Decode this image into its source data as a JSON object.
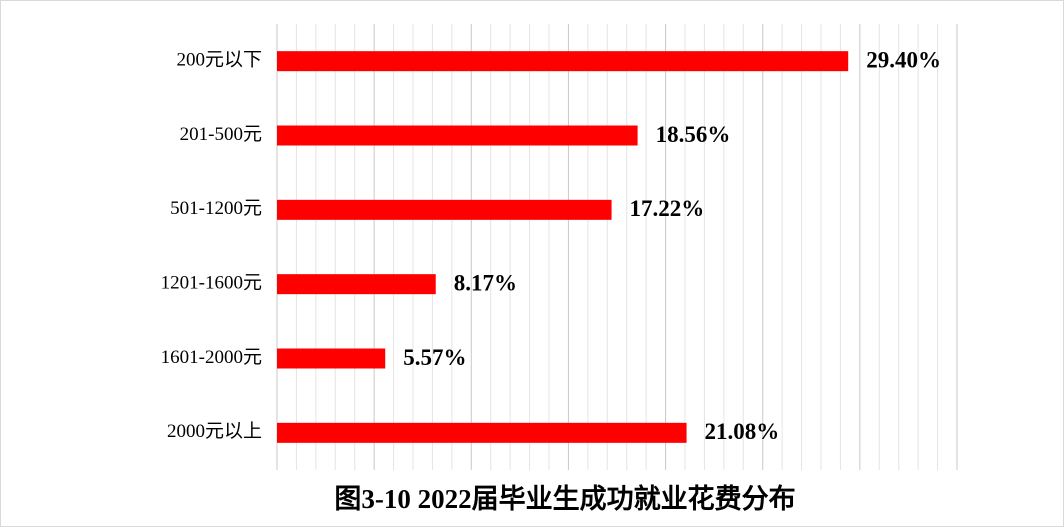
{
  "chart_data": {
    "type": "bar",
    "orientation": "horizontal",
    "title": "图3-10  2022届毕业生成功就业花费分布",
    "categories": [
      "200元以下",
      "201-500元",
      "501-1200元",
      "1201-1600元",
      "1601-2000元",
      "2000元以上"
    ],
    "values": [
      29.4,
      18.56,
      17.22,
      8.17,
      5.57,
      21.08
    ],
    "value_labels": [
      "29.40%",
      "18.56%",
      "17.22%",
      "8.17%",
      "5.57%",
      "21.08%"
    ],
    "color": "#ff0000",
    "xlim": [
      0,
      35
    ],
    "xticks": [
      0,
      1,
      2,
      3,
      4,
      5,
      6,
      7,
      8,
      9,
      10,
      11,
      12,
      13,
      14,
      15,
      16,
      17,
      18,
      19,
      20,
      21,
      22,
      23,
      24,
      25,
      26,
      27,
      28,
      29,
      30,
      31,
      32,
      33,
      34,
      35
    ],
    "grid": true
  }
}
